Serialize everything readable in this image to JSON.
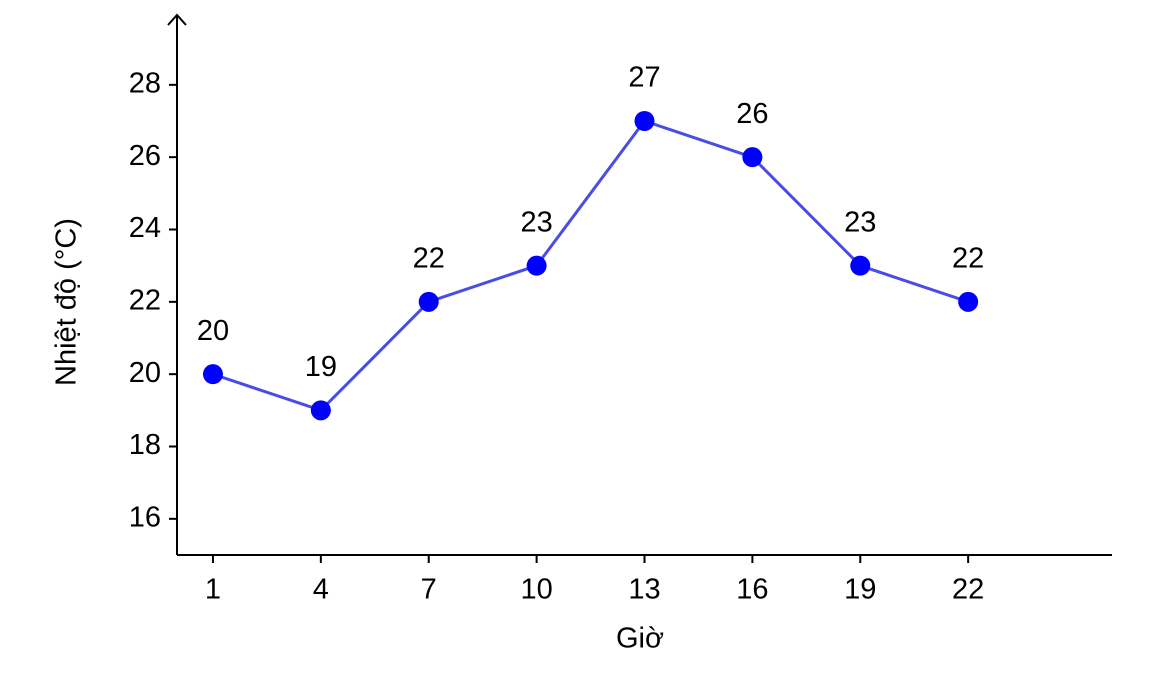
{
  "chart_data": {
    "type": "line",
    "x_label": "Giờ",
    "y_label": "Nhiệt độ (°C)",
    "x": [
      1,
      4,
      7,
      10,
      13,
      16,
      19,
      22
    ],
    "values": [
      20,
      19,
      22,
      23,
      27,
      26,
      23,
      22
    ],
    "color": "#0000ff",
    "line_color": "#4b4be6",
    "xlim": [
      0,
      26
    ],
    "xticks": [
      1,
      4,
      7,
      10,
      13,
      16,
      19,
      22
    ],
    "ylim": [
      15,
      30
    ],
    "yticks": [
      16,
      18,
      20,
      22,
      24,
      26,
      28
    ],
    "grid": false
  }
}
